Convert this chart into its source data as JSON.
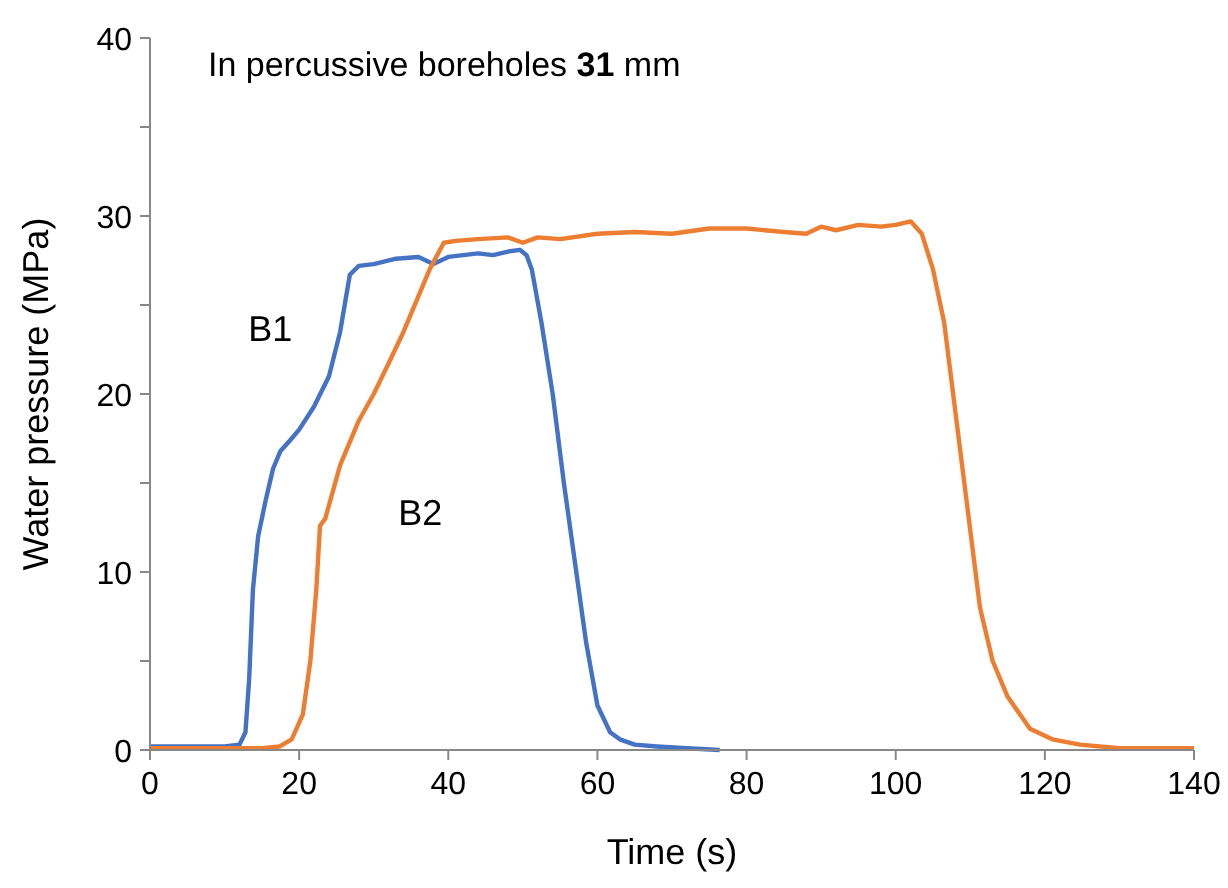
{
  "chart_data": {
    "type": "line",
    "title": "In percussive boreholes 31 mm",
    "xlabel": "Time (s)",
    "ylabel": "Water pressure (MPa)",
    "xlim": [
      0,
      140
    ],
    "xticks": [
      0,
      20,
      40,
      60,
      80,
      100,
      120,
      140
    ],
    "ylim": [
      0,
      40
    ],
    "yticks": [
      0,
      {
        "value": 5,
        "label": null
      },
      10,
      {
        "value": 15,
        "label": null
      },
      20,
      {
        "value": 25,
        "label": null
      },
      30,
      {
        "value": 35,
        "label": null
      },
      40
    ],
    "grid": false,
    "legend": false,
    "marker": "none",
    "line_style": "solid",
    "series": [
      {
        "name": "B1",
        "color": "#4472c4",
        "x": [
          0,
          5,
          10,
          12,
          12.8,
          13.3,
          13.8,
          14.5,
          15.5,
          16.5,
          17.5,
          18.8,
          20,
          22,
          24,
          25.5,
          26.8,
          28,
          30,
          33,
          36,
          38,
          40,
          42,
          44,
          46,
          48,
          49.6,
          50.5,
          51.2,
          52.5,
          54,
          55.5,
          57,
          58.5,
          60,
          61.7,
          63,
          65,
          68,
          72,
          76.4
        ],
        "values": [
          0.2,
          0.2,
          0.2,
          0.3,
          1,
          4,
          9,
          12,
          14,
          15.8,
          16.8,
          17.4,
          18,
          19.3,
          21,
          23.5,
          26.7,
          27.2,
          27.3,
          27.6,
          27.7,
          27.3,
          27.7,
          27.8,
          27.9,
          27.8,
          28,
          28.1,
          27.8,
          27,
          24,
          20,
          15,
          10.5,
          6,
          2.5,
          1,
          0.6,
          0.3,
          0.2,
          0.1,
          0
        ]
      },
      {
        "name": "B2",
        "color": "#ed7d31",
        "x": [
          0,
          5,
          10,
          15,
          17.4,
          19,
          20.5,
          21.5,
          22.3,
          22.8,
          23.5,
          25.5,
          28,
          30,
          32.2,
          34,
          36,
          37.5,
          39.4,
          41,
          44,
          48,
          50,
          52,
          55,
          60,
          65,
          70,
          75,
          80,
          85,
          88,
          90,
          92,
          95,
          98,
          100,
          102,
          103.5,
          105,
          106.5,
          108,
          109.5,
          111.3,
          113,
          115,
          118,
          121,
          124.7,
          130,
          140
        ],
        "values": [
          0.1,
          0.1,
          0.1,
          0.1,
          0.2,
          0.6,
          2,
          5,
          9,
          12.6,
          13,
          16,
          18.5,
          20,
          21.9,
          23.5,
          25.5,
          27,
          28.5,
          28.6,
          28.7,
          28.8,
          28.5,
          28.8,
          28.7,
          29,
          29.1,
          29,
          29.3,
          29.3,
          29.1,
          29,
          29.4,
          29.2,
          29.5,
          29.4,
          29.5,
          29.7,
          29,
          27,
          24,
          19,
          14,
          8,
          5,
          3,
          1.2,
          0.6,
          0.3,
          0.1,
          0.1
        ]
      }
    ]
  }
}
